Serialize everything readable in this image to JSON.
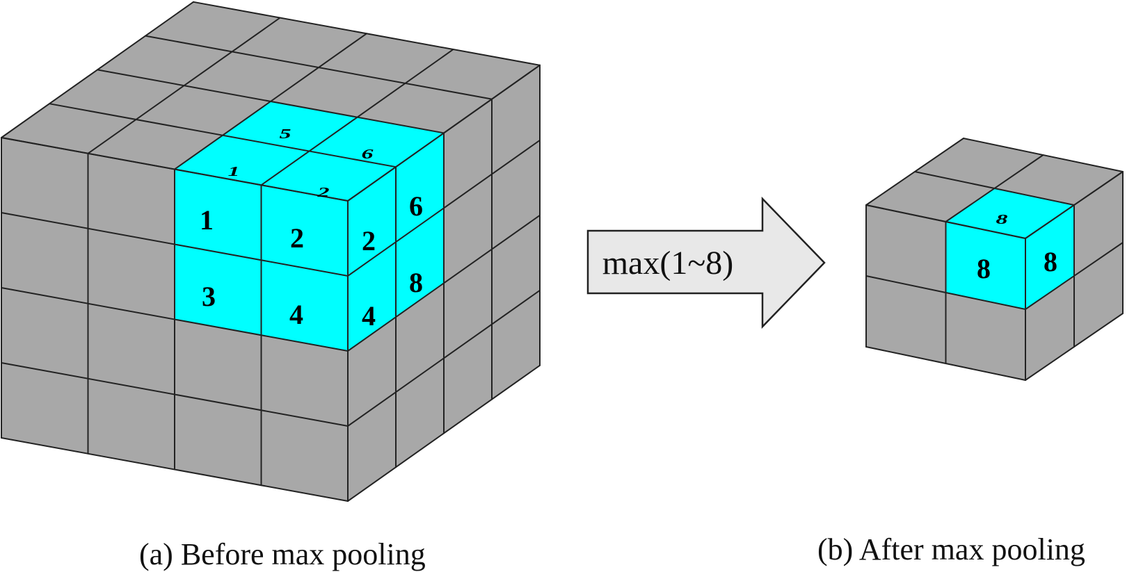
{
  "colors": {
    "gray": "#a8a8a8",
    "highlight": "#00ffff",
    "edge": "#222222",
    "arrow_fill": "#e8e8e8"
  },
  "before": {
    "caption": "(a) Before max pooling",
    "grid": [
      4,
      4,
      4
    ],
    "highlighted_block": {
      "front_values": [
        [
          "1",
          "2"
        ],
        [
          "3",
          "4"
        ]
      ],
      "top_values": [
        [
          "5",
          "6"
        ],
        [
          "1",
          "2"
        ]
      ],
      "side_values": [
        [
          "2",
          "6"
        ],
        [
          "4",
          "8"
        ]
      ]
    }
  },
  "operation": {
    "label": "max(1~8)",
    "icon": "right-arrow-icon"
  },
  "after": {
    "caption": "(b) After max pooling",
    "grid": [
      2,
      2,
      2
    ],
    "highlighted_cell": {
      "front_value": "8",
      "top_value": "8",
      "side_value": "8"
    }
  }
}
